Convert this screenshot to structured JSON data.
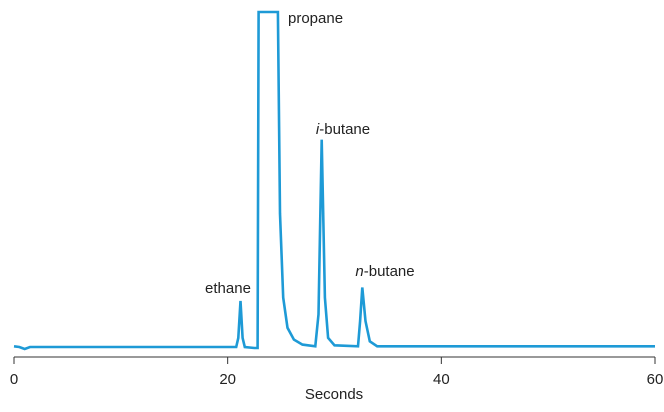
{
  "chart_data": {
    "type": "line",
    "x_label": "Seconds",
    "xlim": [
      0,
      60
    ],
    "xticks": [
      0,
      20,
      40,
      60
    ],
    "ylim": [
      0,
      100
    ],
    "color": "#1e9ad6",
    "series": [
      {
        "x": [
          0,
          0.5,
          1,
          1.5,
          20.8,
          21.0,
          21.2,
          21.4,
          21.6,
          22.5,
          22.8,
          22.9,
          24.7,
          24.9,
          25.2,
          25.6,
          26.2,
          27,
          28.2,
          28.5,
          28.8,
          29.1,
          29.4,
          30,
          32.2,
          32.4,
          32.6,
          32.9,
          33.3,
          34,
          60
        ],
        "values": [
          0.5,
          0.3,
          -0.3,
          0.3,
          0.3,
          3,
          14,
          3,
          0.3,
          0,
          0,
          100,
          100,
          40,
          15,
          6,
          2.5,
          1,
          0.5,
          10,
          62,
          15,
          3,
          0.8,
          0.5,
          8,
          18,
          8,
          2,
          0.5,
          0.5
        ]
      }
    ],
    "annotations": [
      [
        "ethane"
      ],
      [
        "propane"
      ],
      [
        "i",
        "-butane"
      ],
      [
        "n",
        "-butane"
      ]
    ]
  }
}
